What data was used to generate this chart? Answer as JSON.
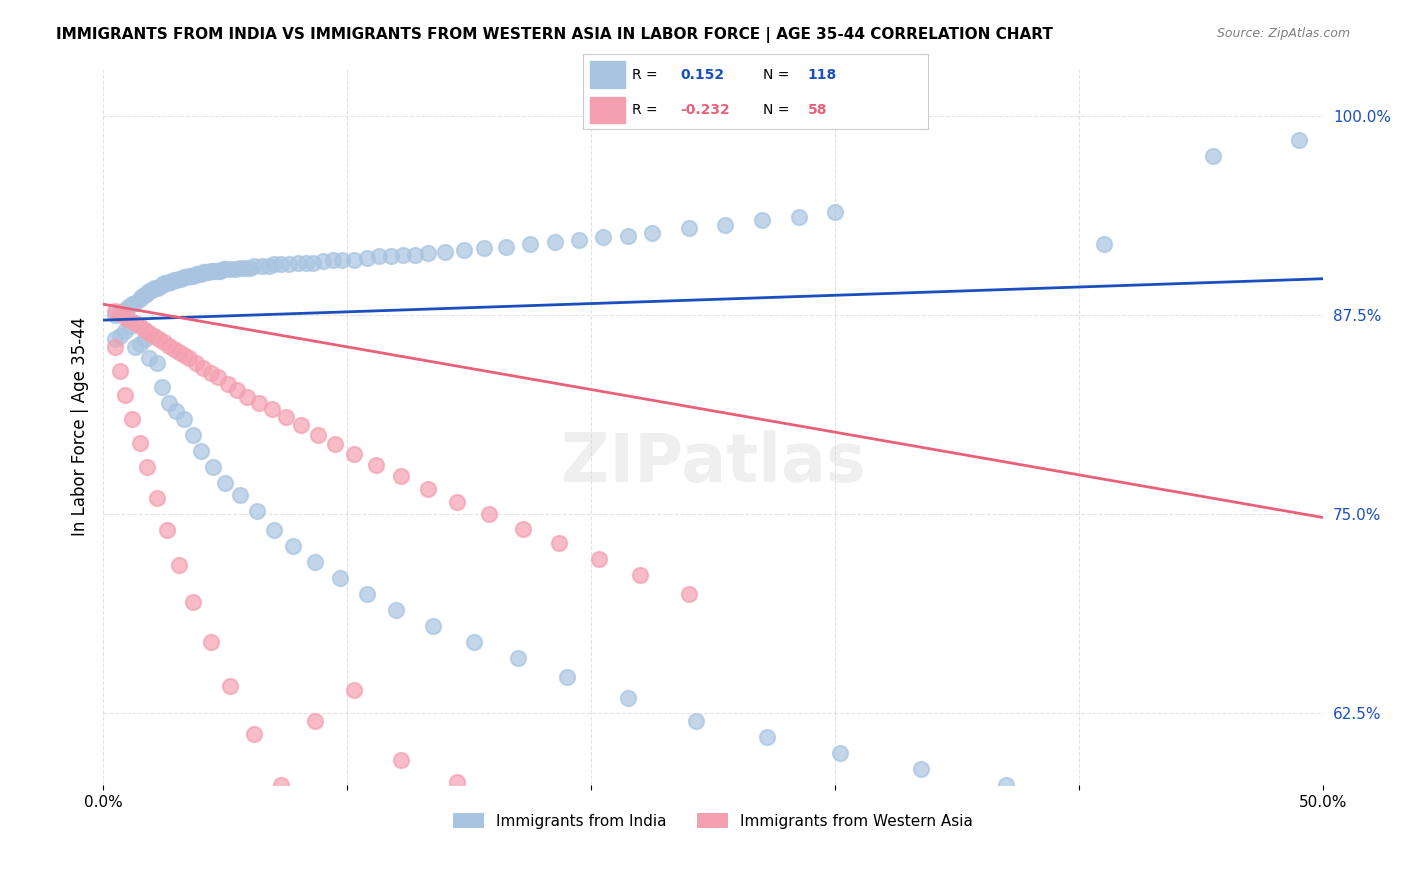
{
  "title": "IMMIGRANTS FROM INDIA VS IMMIGRANTS FROM WESTERN ASIA IN LABOR FORCE | AGE 35-44 CORRELATION CHART",
  "source": "Source: ZipAtlas.com",
  "xlabel": "",
  "ylabel": "In Labor Force | Age 35-44",
  "xlim": [
    0.0,
    0.5
  ],
  "ylim": [
    0.58,
    1.03
  ],
  "xticks": [
    0.0,
    0.1,
    0.2,
    0.3,
    0.4,
    0.5
  ],
  "xticklabels": [
    "0.0%",
    "",
    "",
    "",
    "",
    "50.0%"
  ],
  "yticks": [
    0.625,
    0.75,
    0.875,
    1.0
  ],
  "yticklabels": [
    "62.5%",
    "75.0%",
    "87.5%",
    "100.0%"
  ],
  "india_R": 0.152,
  "india_N": 118,
  "western_R": -0.232,
  "western_N": 58,
  "india_color": "#a8c4e0",
  "western_color": "#f4a0b0",
  "india_line_color": "#1a4fbd",
  "western_line_color": "#e8607a",
  "background_color": "#ffffff",
  "grid_color": "#dddddd",
  "india_x": [
    0.005,
    0.008,
    0.01,
    0.012,
    0.013,
    0.015,
    0.016,
    0.017,
    0.018,
    0.019,
    0.02,
    0.021,
    0.022,
    0.023,
    0.024,
    0.025,
    0.026,
    0.027,
    0.028,
    0.029,
    0.03,
    0.031,
    0.032,
    0.033,
    0.034,
    0.035,
    0.036,
    0.037,
    0.038,
    0.039,
    0.04,
    0.041,
    0.042,
    0.043,
    0.044,
    0.045,
    0.046,
    0.047,
    0.048,
    0.049,
    0.05,
    0.052,
    0.054,
    0.056,
    0.058,
    0.06,
    0.062,
    0.065,
    0.068,
    0.07,
    0.073,
    0.076,
    0.08,
    0.083,
    0.086,
    0.09,
    0.094,
    0.098,
    0.103,
    0.108,
    0.113,
    0.118,
    0.123,
    0.128,
    0.133,
    0.14,
    0.148,
    0.156,
    0.165,
    0.175,
    0.185,
    0.195,
    0.205,
    0.215,
    0.225,
    0.24,
    0.255,
    0.27,
    0.285,
    0.3,
    0.005,
    0.007,
    0.009,
    0.011,
    0.013,
    0.015,
    0.017,
    0.019,
    0.022,
    0.024,
    0.027,
    0.03,
    0.033,
    0.037,
    0.04,
    0.045,
    0.05,
    0.056,
    0.063,
    0.07,
    0.078,
    0.087,
    0.097,
    0.108,
    0.12,
    0.135,
    0.152,
    0.17,
    0.19,
    0.215,
    0.243,
    0.272,
    0.302,
    0.335,
    0.37,
    0.41,
    0.455,
    0.49
  ],
  "india_y": [
    0.875,
    0.878,
    0.88,
    0.882,
    0.883,
    0.885,
    0.887,
    0.888,
    0.889,
    0.89,
    0.891,
    0.892,
    0.892,
    0.893,
    0.894,
    0.895,
    0.895,
    0.896,
    0.896,
    0.897,
    0.897,
    0.898,
    0.898,
    0.899,
    0.899,
    0.9,
    0.9,
    0.9,
    0.901,
    0.901,
    0.901,
    0.902,
    0.902,
    0.902,
    0.903,
    0.903,
    0.903,
    0.903,
    0.903,
    0.904,
    0.904,
    0.904,
    0.904,
    0.905,
    0.905,
    0.905,
    0.906,
    0.906,
    0.906,
    0.907,
    0.907,
    0.907,
    0.908,
    0.908,
    0.908,
    0.909,
    0.91,
    0.91,
    0.91,
    0.911,
    0.912,
    0.912,
    0.913,
    0.913,
    0.914,
    0.915,
    0.916,
    0.917,
    0.918,
    0.92,
    0.921,
    0.922,
    0.924,
    0.925,
    0.927,
    0.93,
    0.932,
    0.935,
    0.937,
    0.94,
    0.86,
    0.862,
    0.865,
    0.868,
    0.855,
    0.857,
    0.86,
    0.848,
    0.845,
    0.83,
    0.82,
    0.815,
    0.81,
    0.8,
    0.79,
    0.78,
    0.77,
    0.762,
    0.752,
    0.74,
    0.73,
    0.72,
    0.71,
    0.7,
    0.69,
    0.68,
    0.67,
    0.66,
    0.648,
    0.635,
    0.62,
    0.61,
    0.6,
    0.59,
    0.58,
    0.92,
    0.975,
    0.985
  ],
  "western_x": [
    0.005,
    0.007,
    0.009,
    0.011,
    0.013,
    0.015,
    0.017,
    0.019,
    0.021,
    0.023,
    0.025,
    0.027,
    0.029,
    0.031,
    0.033,
    0.035,
    0.038,
    0.041,
    0.044,
    0.047,
    0.051,
    0.055,
    0.059,
    0.064,
    0.069,
    0.075,
    0.081,
    0.088,
    0.095,
    0.103,
    0.112,
    0.122,
    0.133,
    0.145,
    0.158,
    0.172,
    0.187,
    0.203,
    0.22,
    0.24,
    0.005,
    0.007,
    0.009,
    0.012,
    0.015,
    0.018,
    0.022,
    0.026,
    0.031,
    0.037,
    0.044,
    0.052,
    0.062,
    0.073,
    0.087,
    0.103,
    0.122,
    0.145
  ],
  "western_y": [
    0.878,
    0.876,
    0.874,
    0.872,
    0.87,
    0.868,
    0.866,
    0.864,
    0.862,
    0.86,
    0.858,
    0.856,
    0.854,
    0.852,
    0.85,
    0.848,
    0.845,
    0.842,
    0.839,
    0.836,
    0.832,
    0.828,
    0.824,
    0.82,
    0.816,
    0.811,
    0.806,
    0.8,
    0.794,
    0.788,
    0.781,
    0.774,
    0.766,
    0.758,
    0.75,
    0.741,
    0.732,
    0.722,
    0.712,
    0.7,
    0.855,
    0.84,
    0.825,
    0.81,
    0.795,
    0.78,
    0.76,
    0.74,
    0.718,
    0.695,
    0.67,
    0.642,
    0.612,
    0.58,
    0.62,
    0.64,
    0.596,
    0.582
  ]
}
